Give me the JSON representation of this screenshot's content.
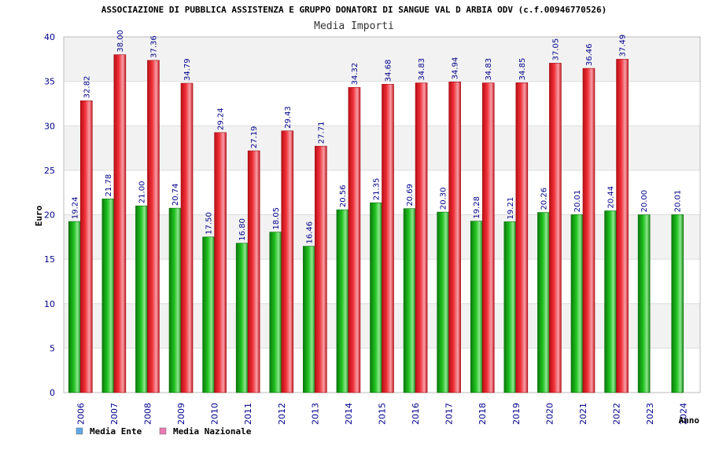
{
  "chart_data": {
    "type": "bar",
    "title": "ASSOCIAZIONE DI PUBBLICA ASSISTENZA E GRUPPO DONATORI DI SANGUE VAL D ARBIA ODV (c.f.00946770526)",
    "subtitle": "Media Importi",
    "xlabel": "Anno",
    "ylabel": "Euro",
    "ylim": [
      0,
      40
    ],
    "yticks": [
      0,
      5,
      10,
      15,
      20,
      25,
      30,
      35,
      40
    ],
    "grid": true,
    "legend_position": "bottom-left",
    "categories": [
      "2006",
      "2007",
      "2008",
      "2009",
      "2010",
      "2011",
      "2012",
      "2013",
      "2014",
      "2015",
      "2016",
      "2017",
      "2018",
      "2019",
      "2020",
      "2021",
      "2022",
      "2023",
      "2024"
    ],
    "series": [
      {
        "name": "Media Ente",
        "legend_color": "#5fa8e8",
        "bar_color": "#1aa51a",
        "values": [
          19.24,
          21.78,
          21.0,
          20.74,
          17.5,
          16.8,
          18.05,
          16.46,
          20.56,
          21.35,
          20.69,
          20.3,
          19.28,
          19.21,
          20.26,
          20.01,
          20.44,
          20.0,
          20.01
        ],
        "labels": [
          "19.24",
          "21.78",
          "21.00",
          "20.74",
          "17.50",
          "16.80",
          "18.05",
          "16.46",
          "20.56",
          "21.35",
          "20.69",
          "20.30",
          "19.28",
          "19.21",
          "20.26",
          "20.01",
          "20.44",
          "20.00",
          "20.01"
        ]
      },
      {
        "name": "Media Nazionale",
        "legend_color": "#e87ab0",
        "bar_color": "#e01a22",
        "values": [
          32.82,
          38.0,
          37.36,
          34.79,
          29.24,
          27.19,
          29.43,
          27.71,
          34.32,
          34.68,
          34.83,
          34.94,
          34.83,
          34.85,
          37.05,
          36.46,
          37.49,
          null,
          null
        ],
        "labels": [
          "32.82",
          "38.00",
          "37.36",
          "34.79",
          "29.24",
          "27.19",
          "29.43",
          "27.71",
          "34.32",
          "34.68",
          "34.83",
          "34.94",
          "34.83",
          "34.85",
          "37.05",
          "36.46",
          "37.49",
          null,
          null
        ]
      }
    ]
  }
}
